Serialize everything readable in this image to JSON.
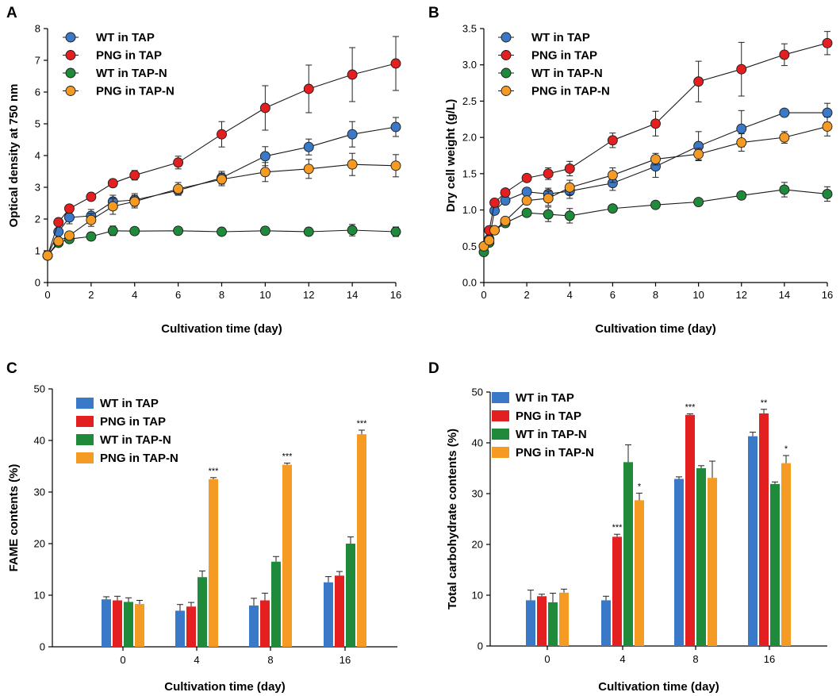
{
  "colors": {
    "WT in TAP": "#3a78c8",
    "PNG in TAP": "#e31f1f",
    "WT in TAP-N": "#1f8a3a",
    "PNG in TAP-N": "#f59a23"
  },
  "chart_data": [
    {
      "id": "A",
      "panel_label": "A",
      "type": "line",
      "xlabel": "Cultivation time (day)",
      "ylabel": "Optical density at 750 nm",
      "xlim": [
        0,
        16
      ],
      "ylim": [
        0,
        8
      ],
      "xticks": [
        0,
        2,
        4,
        6,
        8,
        10,
        12,
        14,
        16
      ],
      "xtick_labels": [
        "0",
        "2",
        "4",
        "6",
        "8",
        "10",
        "12",
        "14",
        "16"
      ],
      "yticks": [
        0,
        1,
        2,
        3,
        4,
        5,
        6,
        7,
        8
      ],
      "ytick_labels": [
        "0",
        "1",
        "2",
        "3",
        "4",
        "5",
        "6",
        "7",
        "8"
      ],
      "legend_position": "top-left",
      "series": [
        {
          "name": "WT in TAP",
          "x": [
            0,
            0.5,
            1,
            2,
            3,
            4,
            6,
            8,
            10,
            12,
            14,
            16
          ],
          "values": [
            0.85,
            1.6,
            2.05,
            2.1,
            2.55,
            2.6,
            2.9,
            3.3,
            3.98,
            4.27,
            4.67,
            4.9
          ],
          "errors": [
            0.05,
            0.1,
            0.2,
            0.2,
            0.2,
            0.2,
            0.15,
            0.2,
            0.3,
            0.25,
            0.4,
            0.3
          ]
        },
        {
          "name": "PNG in TAP",
          "x": [
            0,
            0.5,
            1,
            2,
            3,
            4,
            6,
            8,
            10,
            12,
            14,
            16
          ],
          "values": [
            0.85,
            1.9,
            2.33,
            2.7,
            3.13,
            3.38,
            3.78,
            4.67,
            5.5,
            6.1,
            6.55,
            6.9
          ],
          "errors": [
            0.05,
            0.1,
            0.1,
            0.1,
            0.1,
            0.15,
            0.2,
            0.4,
            0.7,
            0.75,
            0.85,
            0.85
          ]
        },
        {
          "name": "WT in TAP-N",
          "x": [
            0,
            0.5,
            1,
            2,
            3,
            4,
            6,
            8,
            10,
            12,
            14,
            16
          ],
          "values": [
            0.85,
            1.25,
            1.37,
            1.45,
            1.63,
            1.62,
            1.63,
            1.6,
            1.63,
            1.6,
            1.65,
            1.6
          ],
          "errors": [
            0.05,
            0.1,
            0.12,
            0.12,
            0.15,
            0.1,
            0.1,
            0.08,
            0.12,
            0.1,
            0.18,
            0.15
          ]
        },
        {
          "name": "PNG in TAP-N",
          "x": [
            0,
            0.5,
            1,
            2,
            3,
            4,
            6,
            8,
            10,
            12,
            14,
            16
          ],
          "values": [
            0.85,
            1.3,
            1.48,
            1.97,
            2.4,
            2.55,
            2.95,
            3.25,
            3.48,
            3.58,
            3.72,
            3.68
          ],
          "errors": [
            0.05,
            0.1,
            0.12,
            0.2,
            0.25,
            0.2,
            0.2,
            0.2,
            0.3,
            0.3,
            0.35,
            0.35
          ]
        }
      ]
    },
    {
      "id": "B",
      "panel_label": "B",
      "type": "line",
      "xlabel": "Cultivation time (day)",
      "ylabel": "Dry cell weight (g/L)",
      "xlim": [
        0,
        16
      ],
      "ylim": [
        0,
        3.5
      ],
      "xticks": [
        0,
        2,
        4,
        6,
        8,
        10,
        12,
        14,
        16
      ],
      "xtick_labels": [
        "0",
        "2",
        "4",
        "6",
        "8",
        "10",
        "12",
        "14",
        "16"
      ],
      "yticks": [
        0,
        0.5,
        1,
        1.5,
        2,
        2.5,
        3,
        3.5
      ],
      "ytick_labels": [
        "0.0",
        "0.5",
        "1.0",
        "1.5",
        "2.0",
        "2.5",
        "3.0",
        "3.5"
      ],
      "legend_position": "top-left",
      "series": [
        {
          "name": "WT in TAP",
          "x": [
            0,
            0.25,
            0.5,
            1,
            2,
            3,
            4,
            6,
            8,
            10,
            12,
            14,
            16
          ],
          "values": [
            0.5,
            0.6,
            0.99,
            1.13,
            1.25,
            1.22,
            1.26,
            1.37,
            1.6,
            1.88,
            2.12,
            2.34,
            2.34
          ],
          "errors": [
            0.03,
            0.05,
            0.05,
            0.05,
            0.05,
            0.08,
            0.1,
            0.1,
            0.15,
            0.2,
            0.25,
            0.05,
            0.13
          ]
        },
        {
          "name": "PNG in TAP",
          "x": [
            0,
            0.25,
            0.5,
            1,
            2,
            3,
            4,
            6,
            8,
            10,
            12,
            14,
            16
          ],
          "values": [
            0.5,
            0.72,
            1.1,
            1.24,
            1.44,
            1.5,
            1.57,
            1.96,
            2.19,
            2.77,
            2.94,
            3.14,
            3.3
          ],
          "errors": [
            0.03,
            0.05,
            0.05,
            0.05,
            0.05,
            0.08,
            0.1,
            0.1,
            0.17,
            0.28,
            0.37,
            0.15,
            0.16
          ]
        },
        {
          "name": "WT in TAP-N",
          "x": [
            0,
            0.25,
            0.5,
            1,
            2,
            3,
            4,
            6,
            8,
            10,
            12,
            14,
            16
          ],
          "values": [
            0.42,
            0.55,
            0.72,
            0.82,
            0.96,
            0.94,
            0.92,
            1.02,
            1.07,
            1.11,
            1.2,
            1.28,
            1.22
          ],
          "errors": [
            0.03,
            0.05,
            0.05,
            0.05,
            0.05,
            0.1,
            0.1,
            0.05,
            0.05,
            0.05,
            0.05,
            0.1,
            0.1
          ]
        },
        {
          "name": "PNG in TAP-N",
          "x": [
            0,
            0.25,
            0.5,
            1,
            2,
            3,
            4,
            6,
            8,
            10,
            12,
            14,
            16
          ],
          "values": [
            0.5,
            0.58,
            0.72,
            0.85,
            1.13,
            1.16,
            1.31,
            1.48,
            1.7,
            1.77,
            1.93,
            2.0,
            2.15
          ],
          "errors": [
            0.03,
            0.05,
            0.05,
            0.05,
            0.05,
            0.1,
            0.1,
            0.1,
            0.08,
            0.08,
            0.12,
            0.08,
            0.13
          ]
        }
      ]
    },
    {
      "id": "C",
      "panel_label": "C",
      "type": "bar",
      "xlabel": "Cultivation time (day)",
      "ylabel": "FAME contents (%)",
      "categories": [
        "0",
        "4",
        "8",
        "16"
      ],
      "ylim": [
        0,
        50
      ],
      "yticks": [
        0,
        10,
        20,
        30,
        40,
        50
      ],
      "ytick_labels": [
        "0",
        "10",
        "20",
        "30",
        "40",
        "50"
      ],
      "legend_position": "top-left",
      "series": [
        {
          "name": "WT in TAP",
          "values": [
            9.2,
            7.0,
            8.0,
            12.5
          ],
          "errors": [
            0.5,
            1.2,
            1.4,
            1.1
          ]
        },
        {
          "name": "PNG in TAP",
          "values": [
            9.0,
            7.8,
            9.0,
            13.8
          ],
          "errors": [
            0.8,
            0.8,
            1.4,
            0.8
          ]
        },
        {
          "name": "WT in TAP-N",
          "values": [
            8.7,
            13.5,
            16.5,
            20.0
          ],
          "errors": [
            0.8,
            1.2,
            1.0,
            1.3
          ]
        },
        {
          "name": "PNG in TAP-N",
          "values": [
            8.3,
            32.5,
            35.3,
            41.2
          ],
          "errors": [
            0.7,
            0.3,
            0.3,
            0.8
          ]
        }
      ],
      "annotations": [
        {
          "category": "4",
          "series": "PNG in TAP-N",
          "text": "***"
        },
        {
          "category": "8",
          "series": "PNG in TAP-N",
          "text": "***"
        },
        {
          "category": "16",
          "series": "PNG in TAP-N",
          "text": "***"
        }
      ]
    },
    {
      "id": "D",
      "panel_label": "D",
      "type": "bar",
      "xlabel": "Cultivation time (day)",
      "ylabel": "Total carbohydrate contents (%)",
      "categories": [
        "0",
        "4",
        "8",
        "16"
      ],
      "ylim": [
        0,
        50
      ],
      "yticks": [
        0,
        10,
        20,
        30,
        40,
        50
      ],
      "ytick_labels": [
        "0",
        "10",
        "20",
        "30",
        "40",
        "50"
      ],
      "legend_position": "top-left",
      "series": [
        {
          "name": "WT in TAP",
          "values": [
            9.0,
            9.0,
            32.9,
            41.3
          ],
          "errors": [
            2.0,
            0.8,
            0.4,
            0.8
          ]
        },
        {
          "name": "PNG in TAP",
          "values": [
            9.8,
            21.5,
            45.5,
            45.8
          ],
          "errors": [
            0.4,
            0.5,
            0.2,
            0.8
          ]
        },
        {
          "name": "WT in TAP-N",
          "values": [
            8.6,
            36.2,
            35.0,
            31.9
          ],
          "errors": [
            1.8,
            3.4,
            0.5,
            0.4
          ]
        },
        {
          "name": "PNG in TAP-N",
          "values": [
            10.5,
            28.7,
            33.1,
            36.0
          ],
          "errors": [
            0.7,
            1.4,
            3.3,
            1.5
          ]
        }
      ],
      "annotations": [
        {
          "category": "4",
          "series": "PNG in TAP",
          "text": "***"
        },
        {
          "category": "4",
          "series": "PNG in TAP-N",
          "text": "*"
        },
        {
          "category": "8",
          "series": "PNG in TAP",
          "text": "***"
        },
        {
          "category": "16",
          "series": "PNG in TAP",
          "text": "**"
        },
        {
          "category": "16",
          "series": "PNG in TAP-N",
          "text": "*"
        }
      ]
    }
  ]
}
